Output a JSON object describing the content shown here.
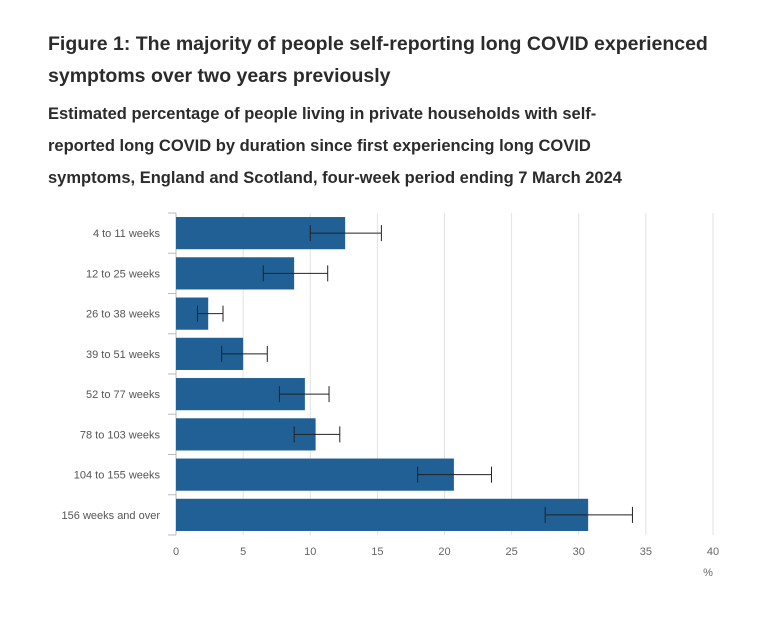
{
  "title": "Figure 1: The majority of people self-reporting long COVID experienced symptoms over two years previously",
  "subtitle": "Estimated percentage of people living in private households with self-reported long COVID by duration since first experiencing long COVID symptoms, England and Scotland, four-week period ending 7 March 2024",
  "colors": {
    "bar": "#206095",
    "grid": "#e2e2e2",
    "axis": "#bbbbbb",
    "error": "#222222"
  },
  "chart_data": {
    "type": "bar",
    "orientation": "horizontal",
    "categories": [
      "4 to 11 weeks",
      "12 to 25 weeks",
      "26 to 38 weeks",
      "39 to 51 weeks",
      "52 to 77 weeks",
      "78 to 103 weeks",
      "104 to 155 weeks",
      "156 weeks and over"
    ],
    "values": [
      12.6,
      8.8,
      2.4,
      5.0,
      9.6,
      10.4,
      20.7,
      30.7
    ],
    "lower": [
      10.0,
      6.5,
      1.6,
      3.4,
      7.7,
      8.8,
      18.0,
      27.5
    ],
    "upper": [
      15.3,
      11.3,
      3.5,
      6.8,
      11.4,
      12.2,
      23.5,
      34.0
    ],
    "xlim": [
      0,
      40
    ],
    "xticks": [
      0,
      5,
      10,
      15,
      20,
      25,
      30,
      35,
      40
    ],
    "xlabel": "%",
    "ylabel": "",
    "grid": true,
    "legend": "none"
  }
}
